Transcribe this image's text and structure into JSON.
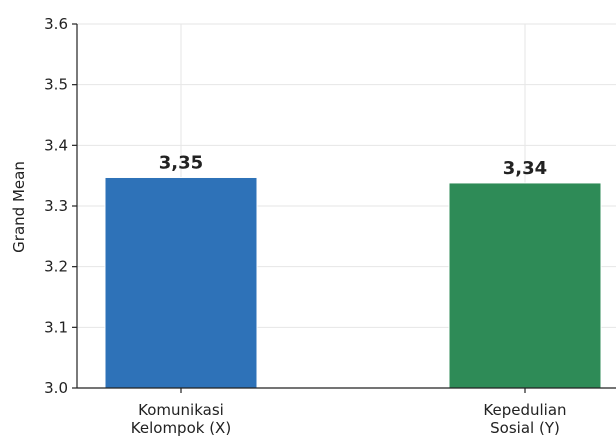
{
  "chart_data": {
    "type": "bar",
    "categories": [
      [
        "Komunikasi",
        "Kelompok (X)"
      ],
      [
        "Kepedulian",
        "Sosial (Y)"
      ]
    ],
    "values": [
      3.347,
      3.338
    ],
    "data_labels": [
      "3,35",
      "3,34"
    ],
    "colors": [
      "#2e72b8",
      "#2e8b57"
    ],
    "ylabel": "Grand Mean",
    "ylim": [
      3.0,
      3.6
    ],
    "yticks": [
      3.0,
      3.1,
      3.2,
      3.3,
      3.4,
      3.5,
      3.6
    ],
    "ytick_labels": [
      "3.0",
      "3.1",
      "3.2",
      "3.3",
      "3.4",
      "3.5",
      "3.6"
    ],
    "grid": true
  }
}
